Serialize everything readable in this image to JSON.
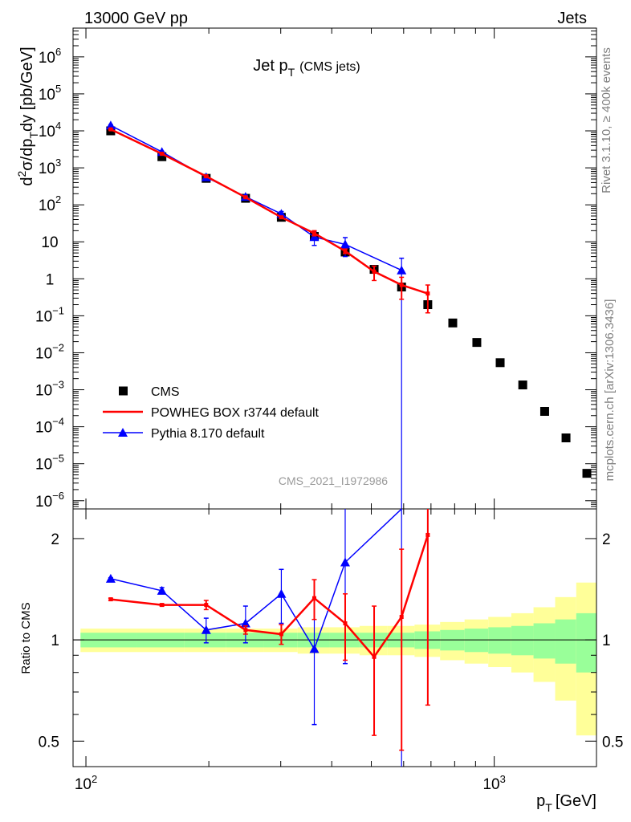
{
  "header": {
    "left": "13000 GeV pp",
    "right": "Jets"
  },
  "side_labels": {
    "rivet": "Rivet 3.1.10, ≥ 400k events",
    "source": "mcplots.cern.ch [arXiv:1306.3436]"
  },
  "watermark": "CMS_2021_I1972986",
  "chart_data": {
    "type": "scatter",
    "title": {
      "main": "Jet p",
      "sub": "T",
      "note": "(CMS jets)"
    },
    "xlabel": {
      "main": "p",
      "sub": "T",
      "unit": "[GeV]"
    },
    "ylabel": {
      "p1": "d",
      "sup": "2",
      "p2": "σ/dp",
      "sub": "T",
      "p3": "dy [pb/GeV]"
    },
    "ratio_ylabel": "Ratio to CMS",
    "x_scale": "log",
    "xlim": [
      93,
      1780
    ],
    "ylim": [
      6e-07,
      6000000.0
    ],
    "ratio_ylim": [
      0.42,
      2.45
    ],
    "x_ticks": [
      {
        "value": 100,
        "base": "10",
        "exp": "2"
      },
      {
        "value": 1000,
        "base": "10",
        "exp": "3"
      }
    ],
    "y_ticks": [
      {
        "value": 1000000.0,
        "base": "10",
        "exp": "6"
      },
      {
        "value": 100000.0,
        "base": "10",
        "exp": "5"
      },
      {
        "value": 10000.0,
        "base": "10",
        "exp": "4"
      },
      {
        "value": 1000.0,
        "base": "10",
        "exp": "3"
      },
      {
        "value": 100.0,
        "base": "10",
        "exp": "2"
      },
      {
        "value": 10,
        "base": "10",
        "exp": ""
      },
      {
        "value": 1,
        "base": "1",
        "exp": ""
      },
      {
        "value": 0.1,
        "base": "10",
        "exp": "−1"
      },
      {
        "value": 0.01,
        "base": "10",
        "exp": "−2"
      },
      {
        "value": 0.001,
        "base": "10",
        "exp": "−3"
      },
      {
        "value": 0.0001,
        "base": "10",
        "exp": "−4"
      },
      {
        "value": 1e-05,
        "base": "10",
        "exp": "−5"
      },
      {
        "value": 1e-06,
        "base": "10",
        "exp": "−6"
      }
    ],
    "ratio_ticks": [
      {
        "value": 0.5,
        "label": "0.5"
      },
      {
        "value": 1,
        "label": "1"
      },
      {
        "value": 2,
        "label": "2"
      }
    ],
    "legend": {
      "placement": "lower-left",
      "entries": [
        {
          "label": "CMS",
          "series": "cms"
        },
        {
          "label": "POWHEG BOX r3744 default",
          "series": "powheg"
        },
        {
          "label": "Pythia 8.170 default",
          "series": "pythia"
        }
      ]
    },
    "colors": {
      "cms": "#000000",
      "powheg": "#ff0000",
      "pythia": "#0000ff",
      "band_inner": "#99ff99",
      "band_outer": "#ffff99"
    },
    "bin_edges": [
      97,
      133,
      174,
      220,
      272,
      330,
      395,
      468,
      548,
      638,
      737,
      846,
      967,
      1101,
      1248,
      1410,
      1588,
      1784
    ],
    "cms": {
      "x": [
        115,
        153.5,
        197,
        246,
        301,
        362.5,
        431.5,
        508,
        593,
        687.5,
        791.5,
        906.5,
        1034,
        1174.5,
        1329,
        1499,
        1686
      ],
      "y": [
        10000,
        2000,
        520,
        150,
        46,
        14,
        5.3,
        1.8,
        0.6,
        0.2,
        0.064,
        0.019,
        0.0054,
        0.00135,
        0.00026,
        5e-05,
        5.5e-06
      ]
    },
    "band": {
      "inner": [
        0.05,
        0.05,
        0.05,
        0.05,
        0.05,
        0.05,
        0.05,
        0.05,
        0.05,
        0.06,
        0.07,
        0.08,
        0.09,
        0.1,
        0.12,
        0.15,
        0.2
      ],
      "outer": [
        0.08,
        0.08,
        0.08,
        0.08,
        0.08,
        0.09,
        0.09,
        0.1,
        0.1,
        0.11,
        0.13,
        0.15,
        0.17,
        0.2,
        0.25,
        0.34,
        0.48
      ]
    },
    "powheg": {
      "x": [
        115,
        153.5,
        197,
        246,
        301,
        362.5,
        431.5,
        508,
        593,
        687.5
      ],
      "y": [
        11000,
        2400,
        590,
        160,
        46,
        17,
        5.6,
        1.57,
        0.68,
        0.4
      ],
      "y_lo": [
        10600,
        2340,
        565,
        154,
        43,
        14.5,
        4.8,
        0.9,
        0.28,
        0.12
      ],
      "y_hi": [
        11400,
        2460,
        615,
        166,
        49,
        20,
        6.4,
        2.2,
        1.1,
        0.68
      ],
      "ratio": [
        1.32,
        1.27,
        1.27,
        1.07,
        1.04,
        1.33,
        1.12,
        0.89,
        1.17,
        2.05
      ],
      "ratio_lo": [
        1.31,
        1.26,
        1.23,
        1.04,
        0.97,
        1.15,
        0.87,
        0.52,
        0.47,
        0.64
      ],
      "ratio_hi": [
        1.33,
        1.28,
        1.31,
        1.1,
        1.11,
        1.51,
        1.37,
        1.26,
        1.86,
        2.45
      ]
    },
    "pythia": {
      "x": [
        115,
        153.5,
        197,
        246,
        301,
        362.5,
        431.5,
        593
      ],
      "y": [
        14000,
        2700,
        560,
        165,
        57,
        13.5,
        8.5,
        1.7
      ],
      "y_lo": [
        13400,
        2600,
        520,
        148,
        48,
        8,
        4,
        1e-08
      ],
      "y_hi": [
        14600,
        2800,
        600,
        182,
        66,
        19,
        13,
        3.6
      ],
      "ratio": [
        1.52,
        1.4,
        1.07,
        1.12,
        1.37,
        0.94,
        1.7,
        2.85
      ],
      "ratio_lo": [
        1.51,
        1.37,
        0.98,
        0.98,
        1.12,
        0.56,
        0.85,
        0.3
      ],
      "ratio_hi": [
        1.53,
        1.43,
        1.16,
        1.26,
        1.62,
        1.32,
        2.55,
        5.4
      ]
    }
  }
}
